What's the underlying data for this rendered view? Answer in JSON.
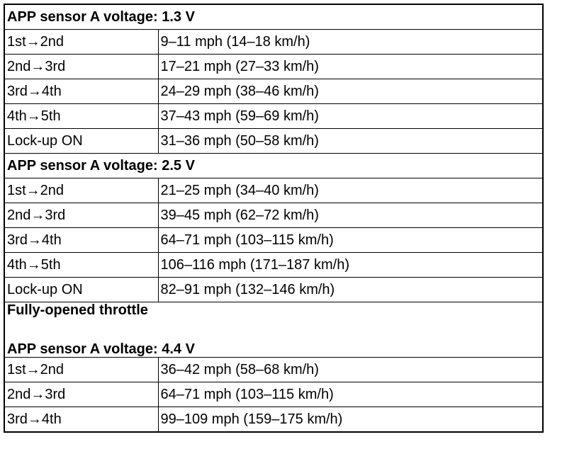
{
  "sections": [
    {
      "heading": [
        "APP sensor A voltage: 1.3 V"
      ],
      "rows": [
        [
          "1st→2nd",
          "9–11 mph (14–18 km/h)"
        ],
        [
          "2nd→3rd",
          "17–21 mph (27–33 km/h)"
        ],
        [
          "3rd→4th",
          "24–29 mph (38–46 km/h)"
        ],
        [
          "4th→5th",
          "37–43 mph (59–69 km/h)"
        ],
        [
          "Lock-up ON",
          "31–36 mph (50–58 km/h)"
        ]
      ]
    },
    {
      "heading": [
        "APP sensor A voltage: 2.5 V"
      ],
      "rows": [
        [
          "1st→2nd",
          "21–25 mph (34–40 km/h)"
        ],
        [
          "2nd→3rd",
          "39–45 mph (62–72 km/h)"
        ],
        [
          "3rd→4th",
          "64–71 mph (103–115 km/h)"
        ],
        [
          "4th→5th",
          "106–116 mph (171–187 km/h)"
        ],
        [
          "Lock-up ON",
          "82–91 mph (132–146 km/h)"
        ]
      ]
    },
    {
      "heading": [
        "Fully-opened throttle",
        "APP sensor A voltage: 4.4 V"
      ],
      "rows": [
        [
          "1st→2nd",
          "36–42 mph (58–68 km/h)"
        ],
        [
          "2nd→3rd",
          "64–71 mph (103–115 km/h)"
        ],
        [
          "3rd→4th",
          "99–109 mph (159–175 km/h)"
        ]
      ]
    }
  ]
}
